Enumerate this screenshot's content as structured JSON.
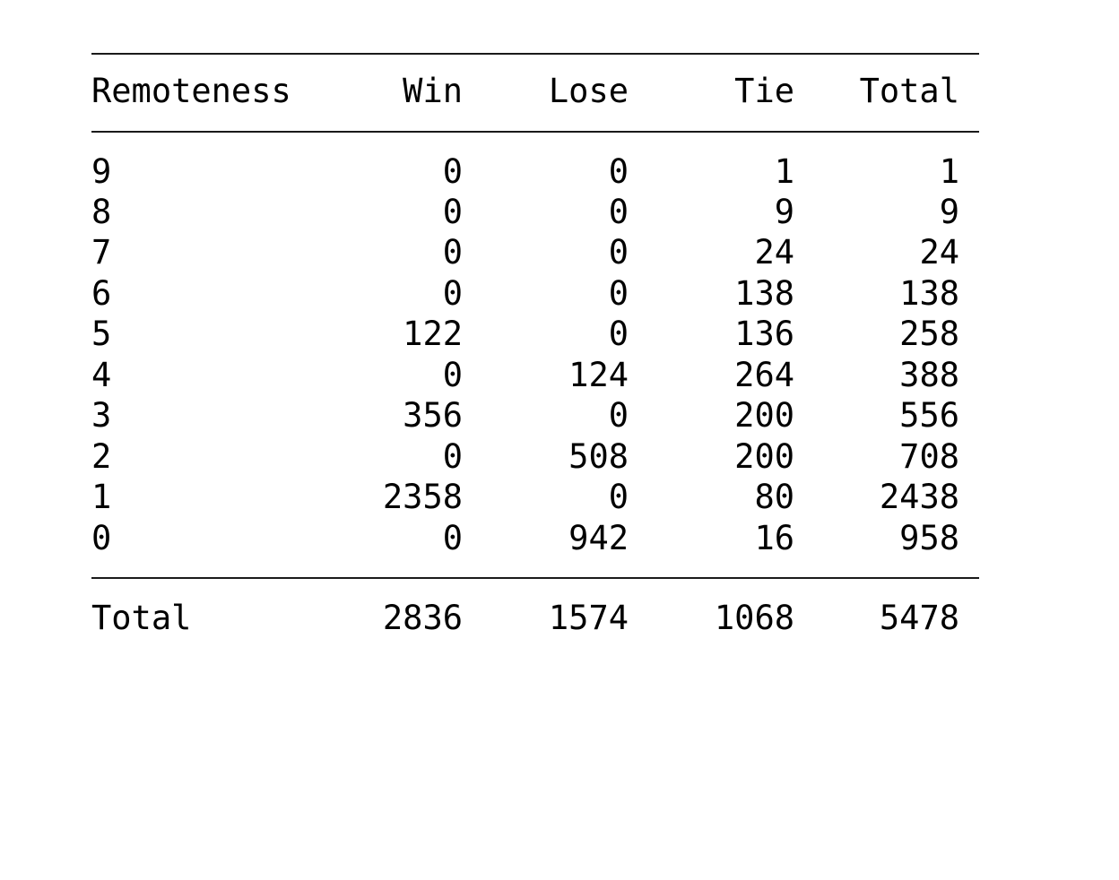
{
  "table": {
    "headers": [
      "Remoteness",
      "Win",
      "Lose",
      "Tie",
      "Total"
    ],
    "rows": [
      [
        "9",
        "0",
        "0",
        "1",
        "1"
      ],
      [
        "8",
        "0",
        "0",
        "9",
        "9"
      ],
      [
        "7",
        "0",
        "0",
        "24",
        "24"
      ],
      [
        "6",
        "0",
        "0",
        "138",
        "138"
      ],
      [
        "5",
        "122",
        "0",
        "136",
        "258"
      ],
      [
        "4",
        "0",
        "124",
        "264",
        "388"
      ],
      [
        "3",
        "356",
        "0",
        "200",
        "556"
      ],
      [
        "2",
        "0",
        "508",
        "200",
        "708"
      ],
      [
        "1",
        "2358",
        "0",
        "80",
        "2438"
      ],
      [
        "0",
        "0",
        "942",
        "16",
        "958"
      ]
    ],
    "totals": [
      "Total",
      "2836",
      "1574",
      "1068",
      "5478"
    ]
  }
}
